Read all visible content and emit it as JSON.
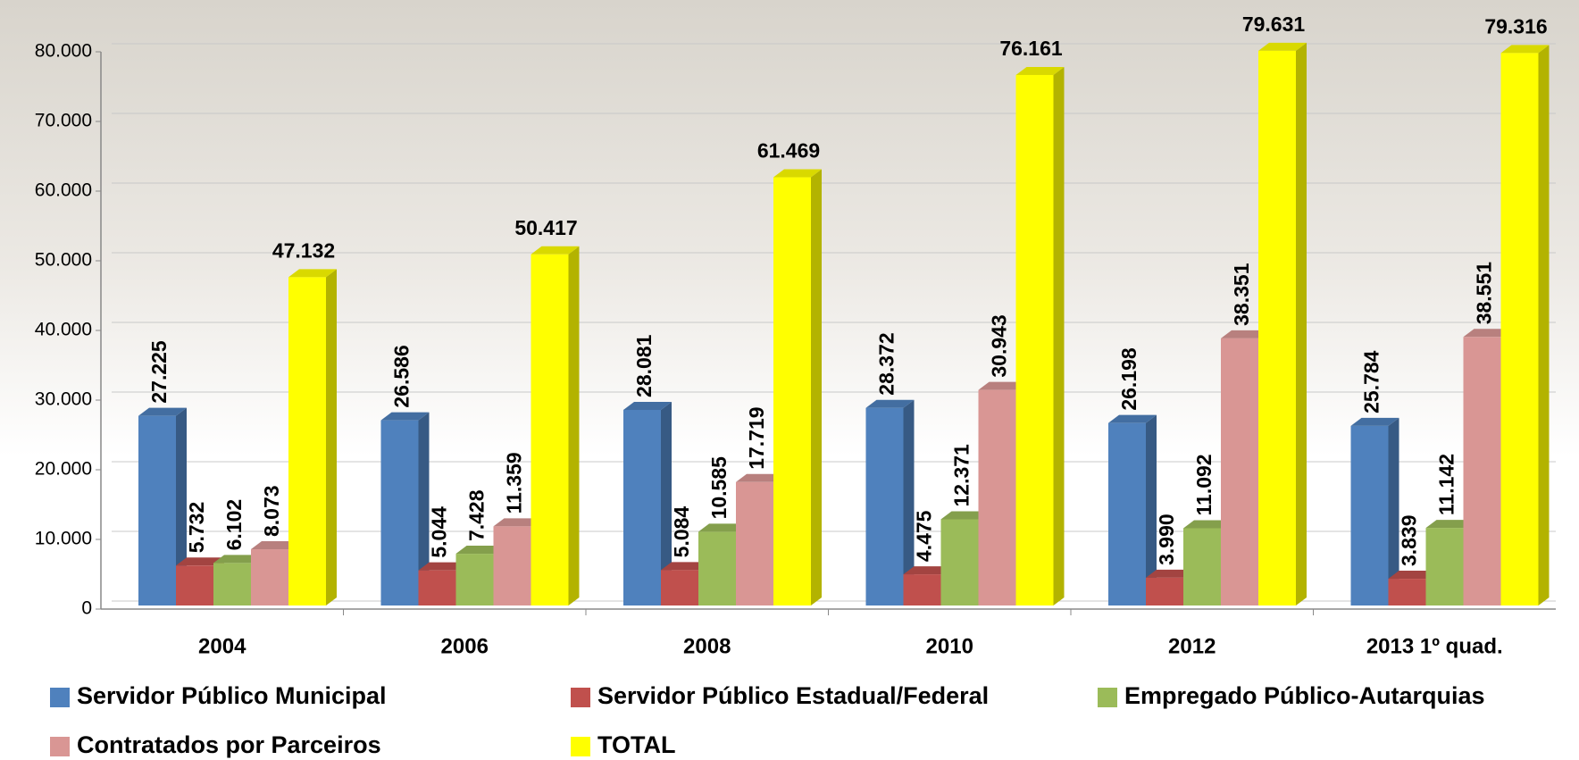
{
  "chart_data": {
    "type": "bar3d",
    "categories": [
      "2004",
      "2006",
      "2008",
      "2010",
      "2012",
      "2013 1º quad."
    ],
    "series": [
      {
        "name": "Servidor Público Municipal",
        "color": "#4f81bd",
        "values": [
          27225,
          26586,
          28081,
          28372,
          26198,
          25784
        ],
        "value_labels": [
          "27.225",
          "26.586",
          "28.081",
          "28.372",
          "26.198",
          "25.784"
        ]
      },
      {
        "name": "Servidor Público Estadual/Federal",
        "color": "#c0504d",
        "values": [
          5732,
          5044,
          5084,
          4475,
          3990,
          3839
        ],
        "value_labels": [
          "5.732",
          "5.044",
          "5.084",
          "4.475",
          "3.990",
          "3.839"
        ]
      },
      {
        "name": "Empregado Público-Autarquias",
        "color": "#9bbb59",
        "values": [
          6102,
          7428,
          10585,
          12371,
          11092,
          11142
        ],
        "value_labels": [
          "6.102",
          "7.428",
          "10.585",
          "12.371",
          "11.092",
          "11.142"
        ]
      },
      {
        "name": "Contratados por Parceiros",
        "color": "#d99694",
        "values": [
          8073,
          11359,
          17719,
          30943,
          38351,
          38551
        ],
        "value_labels": [
          "8.073",
          "11.359",
          "17.719",
          "30.943",
          "38.351",
          "38.551"
        ]
      },
      {
        "name": "TOTAL",
        "color": "#ffff00",
        "values": [
          47132,
          50417,
          61469,
          76161,
          79631,
          79316
        ],
        "value_labels": [
          "47.132",
          "50.417",
          "61.469",
          "76.161",
          "79.631",
          "79.316"
        ]
      }
    ],
    "ylim": [
      0,
      80000
    ],
    "yticks": [
      {
        "value": 0,
        "label": "0"
      },
      {
        "value": 10000,
        "label": "10.000"
      },
      {
        "value": 20000,
        "label": "20.000"
      },
      {
        "value": 30000,
        "label": "30.000"
      },
      {
        "value": 40000,
        "label": "40.000"
      },
      {
        "value": 50000,
        "label": "50.000"
      },
      {
        "value": 60000,
        "label": "60.000"
      },
      {
        "value": 70000,
        "label": "70.000"
      },
      {
        "value": 80000,
        "label": "80.000"
      }
    ],
    "grid": true
  }
}
